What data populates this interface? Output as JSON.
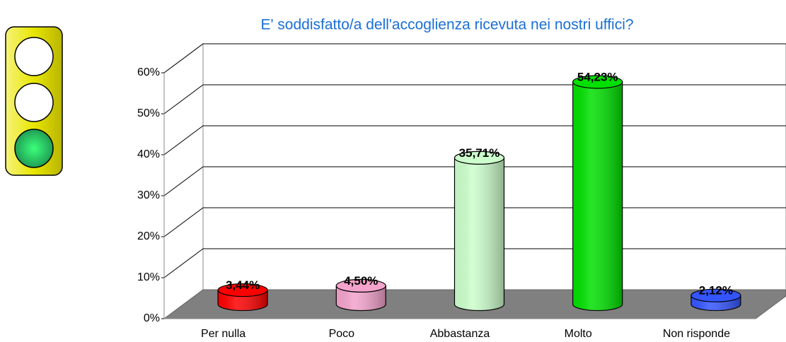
{
  "chart_data": {
    "type": "bar3d",
    "title": "E' soddisfatto/a dell'accoglienza ricevuta nei nostri uffici?",
    "categories": [
      "Per nulla",
      "Poco",
      "Abbastanza",
      "Molto",
      "Non risponde"
    ],
    "values": [
      3.44,
      4.5,
      35.71,
      54.23,
      2.12
    ],
    "value_labels": [
      "3,44%",
      "4,50%",
      "35,71%",
      "54,23%",
      "2,12%"
    ],
    "colors": [
      "#ff0000",
      "#f4a3cc",
      "#ccffcc",
      "#00e000",
      "#3355ff"
    ],
    "ylim": [
      0,
      60
    ],
    "yticks": [
      {
        "value": 0,
        "label": "0%"
      },
      {
        "value": 10,
        "label": "10%"
      },
      {
        "value": 20,
        "label": "20%"
      },
      {
        "value": 30,
        "label": "30%"
      },
      {
        "value": 40,
        "label": "40%"
      },
      {
        "value": 50,
        "label": "50%"
      },
      {
        "value": 60,
        "label": "60%"
      }
    ],
    "grid": true
  }
}
